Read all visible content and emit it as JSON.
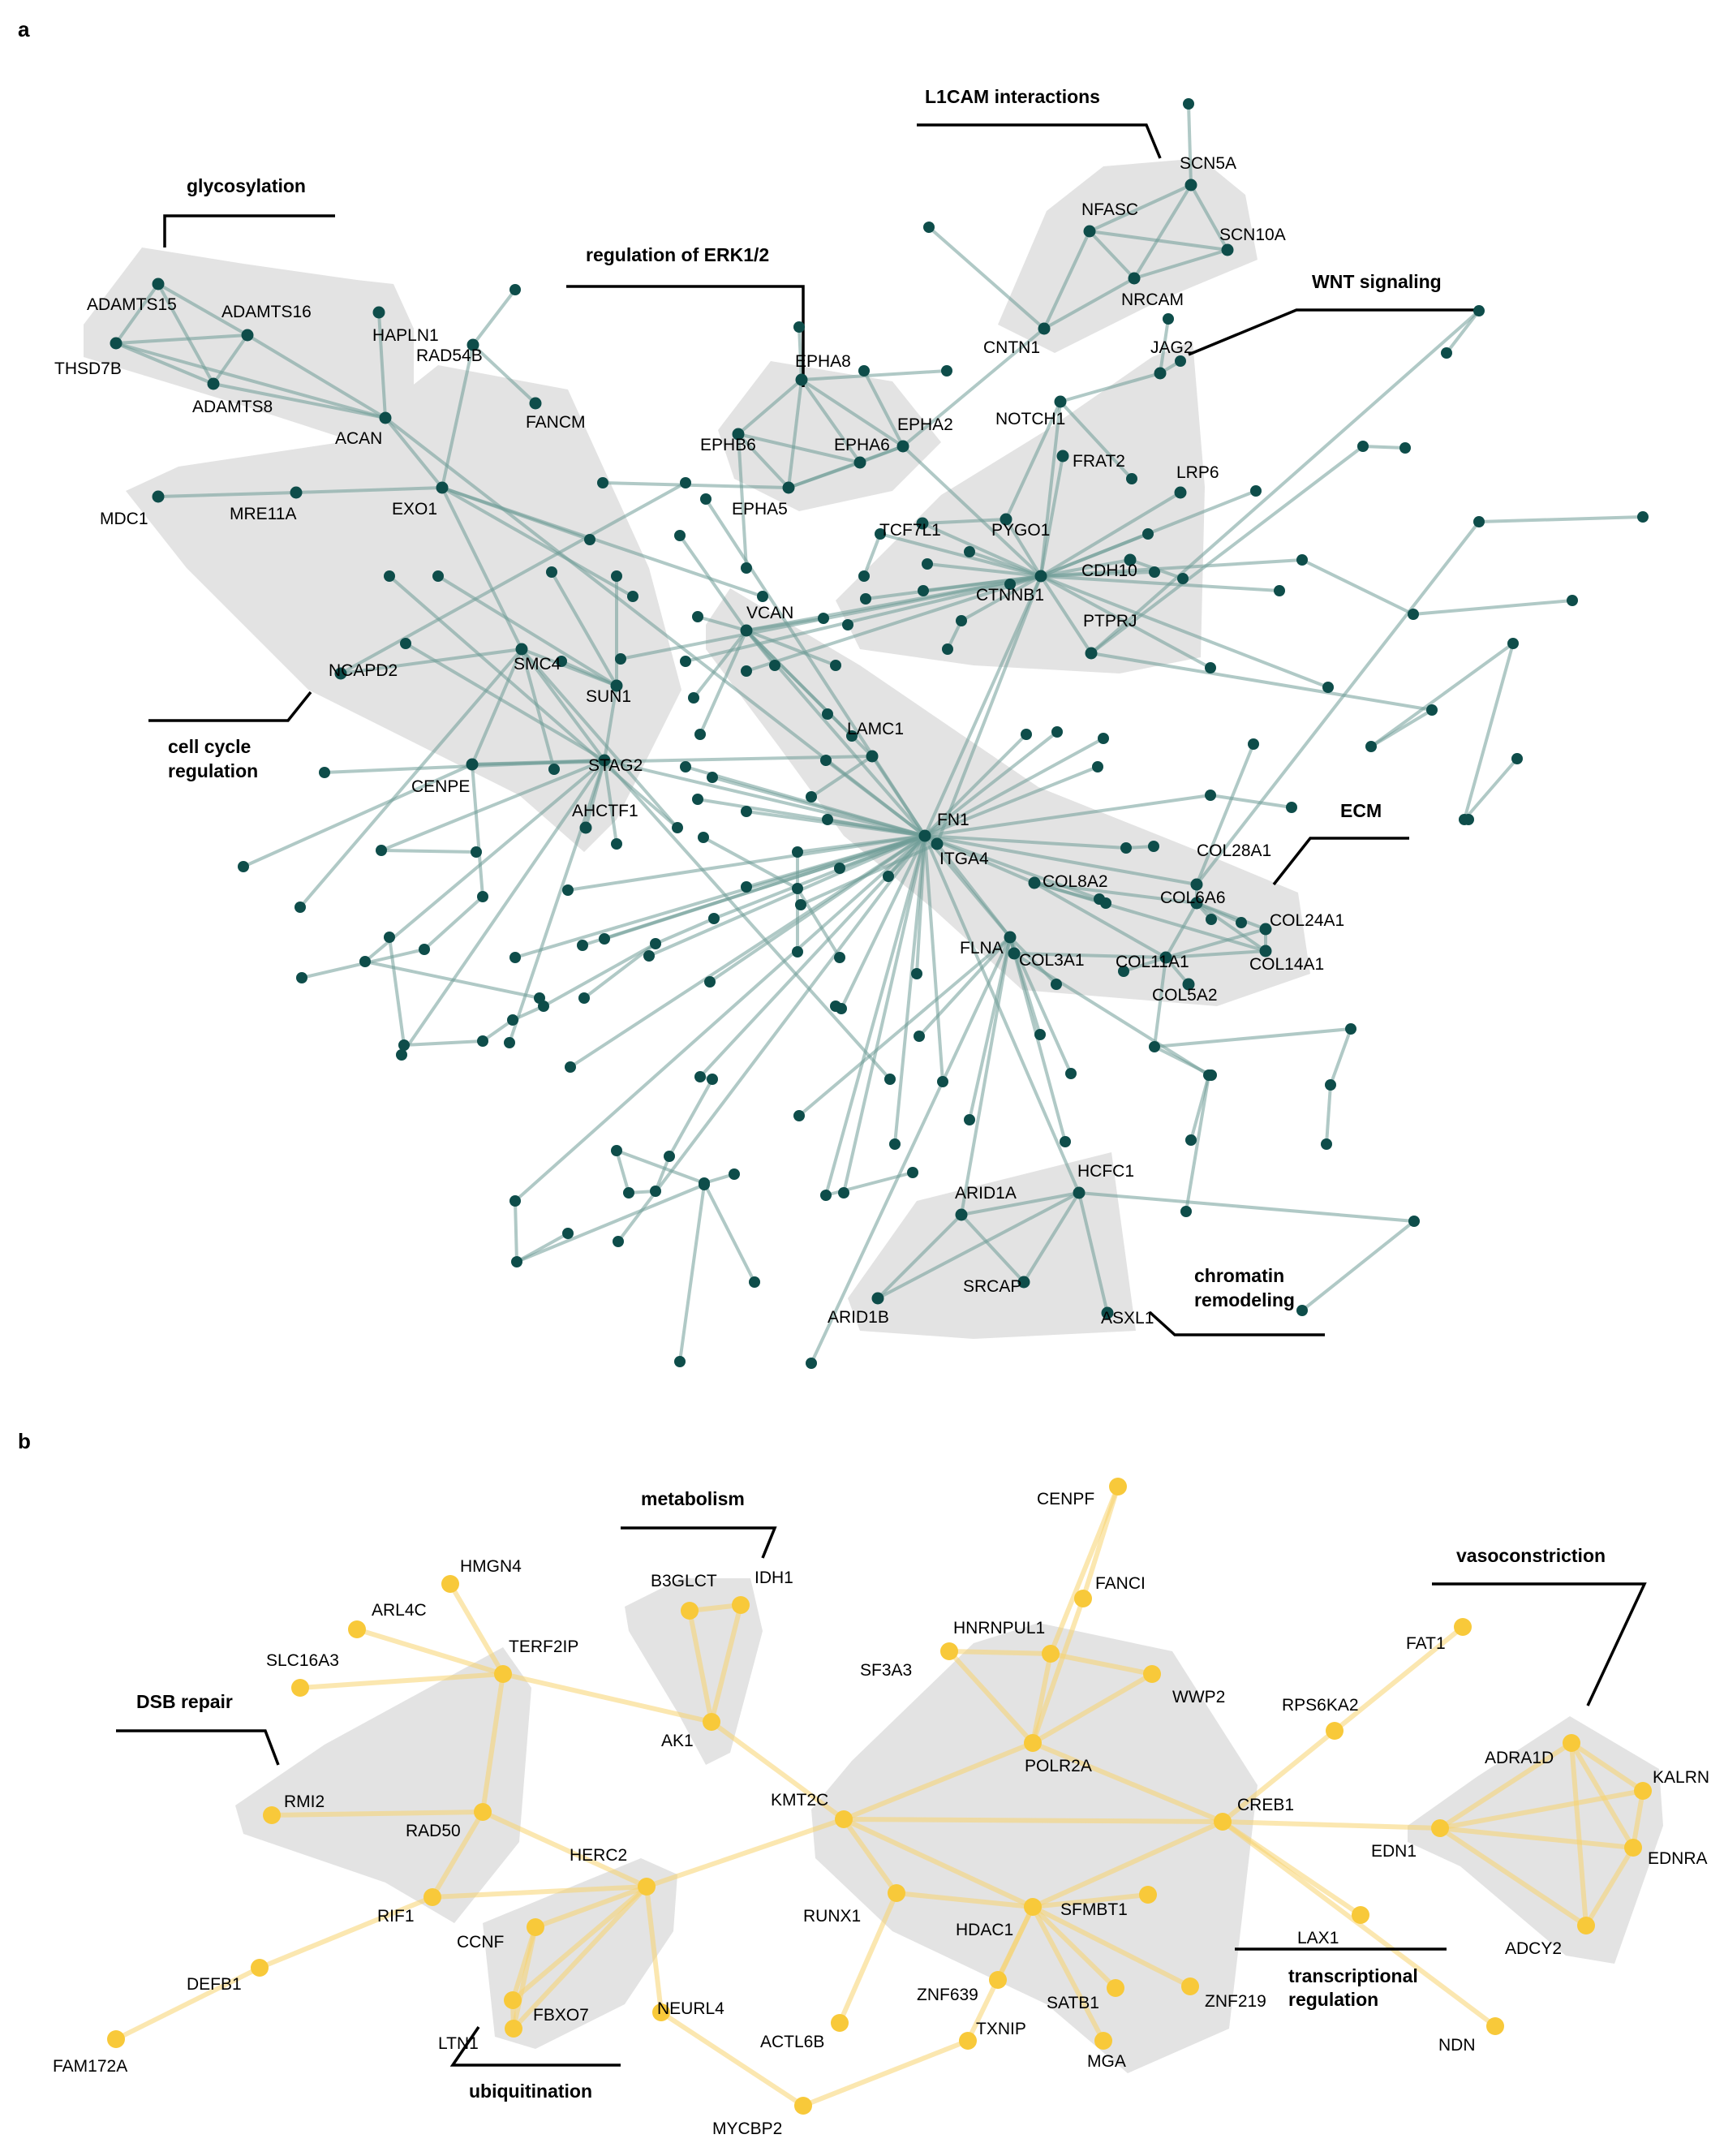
{
  "panels": [
    {
      "letter": "a",
      "colors": {
        "node": "#0e4d4a",
        "edge": "#6f9c98"
      },
      "groups": [
        {
          "name": "glycosylation",
          "members": [
            "ADAMTS15",
            "ADAMTS16",
            "THSD7B",
            "ADAMTS8",
            "HAPLN1",
            "ACAN"
          ]
        },
        {
          "name": "L1CAM interactions",
          "members": [
            "SCN5A",
            "NFASC",
            "SCN10A",
            "NRCAM",
            "CNTN1"
          ]
        },
        {
          "name": "regulation of ERK1/2",
          "members": [
            "EPHA8",
            "EPHA2",
            "EPHB6",
            "EPHA6",
            "EPHA5"
          ]
        },
        {
          "name": "WNT signaling",
          "members": [
            "JAG2",
            "NOTCH1",
            "FRAT2",
            "LRP6",
            "TCF7L1",
            "PYGO1",
            "CDH10",
            "CTNNB1",
            "PTPRJ"
          ]
        },
        {
          "name": "cell cycle regulation",
          "members": [
            "RAD54B",
            "FANCM",
            "MDC1",
            "MRE11A",
            "EXO1",
            "NCAPD2",
            "SMC4",
            "SUN1",
            "STAG2",
            "CENPE",
            "AHCTF1"
          ]
        },
        {
          "name": "ECM",
          "members": [
            "VCAN",
            "LAMC1",
            "FN1",
            "ITGA4",
            "FLNA",
            "COL8A2",
            "COL28A1",
            "COL6A6",
            "COL24A1",
            "COL11A1",
            "COL14A1",
            "COL3A1",
            "COL5A2"
          ]
        },
        {
          "name": "chromatin remodeling",
          "members": [
            "ARID1A",
            "HCFC1",
            "SRCAP",
            "ARID1B",
            "ASXL1"
          ]
        }
      ]
    },
    {
      "letter": "b",
      "colors": {
        "node": "#f8c93a",
        "edge": "#f8d470"
      },
      "groups": [
        {
          "name": "metabolism",
          "members": [
            "B3GLCT",
            "IDH1",
            "AK1"
          ]
        },
        {
          "name": "DSB repair",
          "members": [
            "TERF2IP",
            "RMI2",
            "RAD50",
            "RIF1"
          ]
        },
        {
          "name": "ubiquitination",
          "members": [
            "HERC2",
            "CCNF",
            "FBXO7",
            "LTN1"
          ]
        },
        {
          "name": "transcriptional regulation",
          "members": [
            "HNRNPUL1",
            "WWP2",
            "POLR2A",
            "KMT2C",
            "CREB1",
            "RUNX1",
            "HDAC1",
            "SFMBT1",
            "ZNF639",
            "SATB1",
            "ZNF219",
            "MGA"
          ]
        },
        {
          "name": "vasoconstriction",
          "members": [
            "ADRA1D",
            "KALRN",
            "EDN1",
            "EDNRA",
            "ADCY2"
          ]
        }
      ],
      "other_genes": [
        "CENPF",
        "FANCI",
        "HMGN4",
        "ARL4C",
        "SLC16A3",
        "SF3A3",
        "FAT1",
        "RPS6KA2",
        "LAX1",
        "NDN",
        "DEFB1",
        "FAM172A",
        "NEURL4",
        "ACTL6B",
        "TXNIP",
        "MYCBP2"
      ]
    }
  ]
}
